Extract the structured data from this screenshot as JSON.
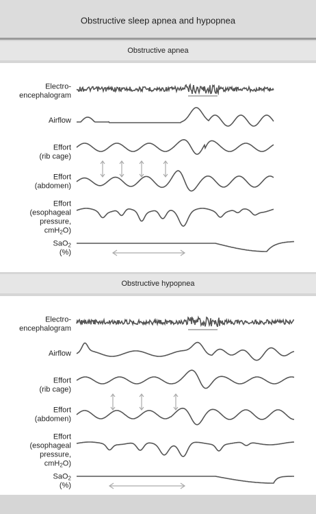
{
  "header": {
    "title": "Obstructive sleep apnea and hypopnea"
  },
  "sections": [
    {
      "title": "Obstructive apnea",
      "traces": [
        {
          "label": [
            "Electro-",
            "encephalogram"
          ]
        },
        {
          "label": [
            "Airflow"
          ]
        },
        {
          "label": [
            "Effort",
            "(rib cage)"
          ]
        },
        {
          "label": [
            "Effort",
            "(abdomen)"
          ]
        },
        {
          "label": [
            "Effort",
            "(esophageal",
            "pressure,",
            {
              "text": "cmH",
              "sub": "2",
              "tail": "O)"
            }
          ]
        },
        {
          "label": [
            {
              "text": "SaO",
              "sub": "2"
            },
            "(%)"
          ]
        }
      ]
    },
    {
      "title": "Obstructive hypopnea",
      "traces": [
        {
          "label": [
            "Electro-",
            "encephalogram"
          ]
        },
        {
          "label": [
            "Airflow"
          ]
        },
        {
          "label": [
            "Effort",
            "(rib cage)"
          ]
        },
        {
          "label": [
            "Effort",
            "(abdomen)"
          ]
        },
        {
          "label": [
            "Effort",
            "(esophageal",
            "pressure,",
            {
              "text": "cmH",
              "sub": "2",
              "tail": "O)"
            }
          ]
        },
        {
          "label": [
            {
              "text": "SaO",
              "sub": "2"
            },
            "(%)"
          ]
        }
      ]
    }
  ]
}
